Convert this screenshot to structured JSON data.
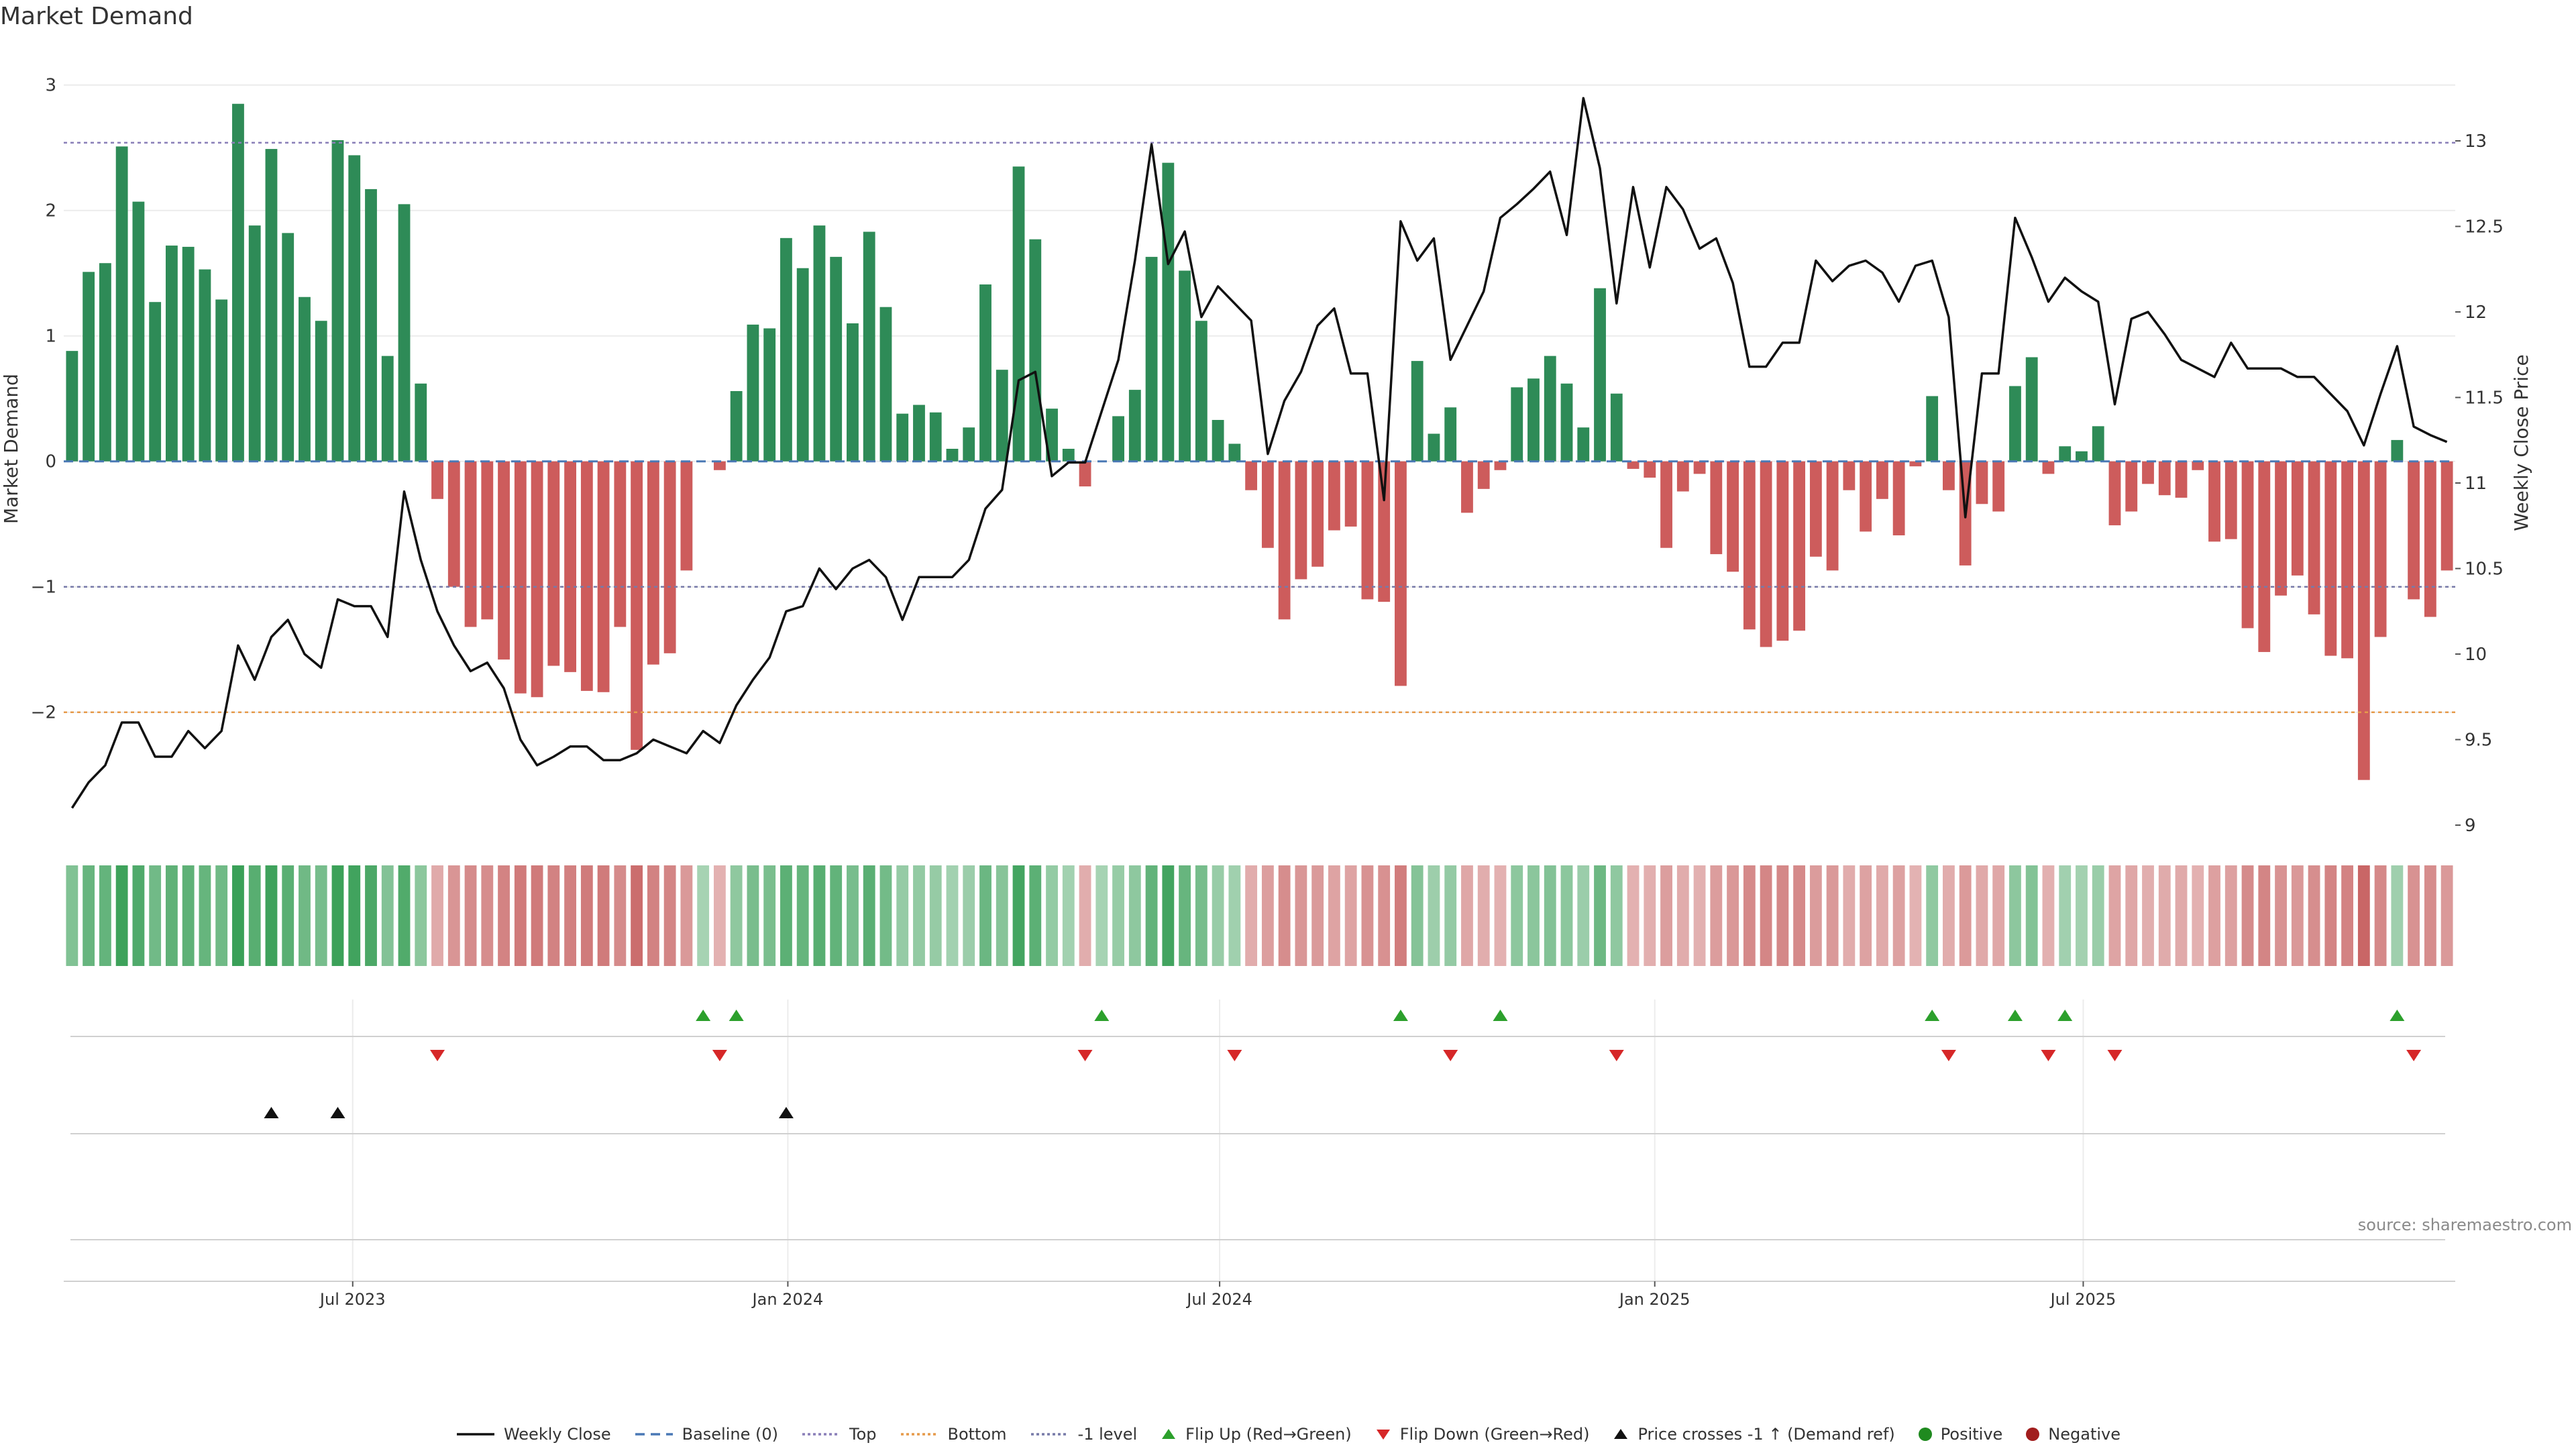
{
  "title": "Market Demand",
  "source": "source: sharemaestro.com",
  "chart_data": {
    "type": "bar",
    "title": "Market Demand",
    "weeks_start": "2023-03-06",
    "demand": [
      0.88,
      1.51,
      1.58,
      2.51,
      2.07,
      1.27,
      1.72,
      1.71,
      1.53,
      1.29,
      2.85,
      1.88,
      2.49,
      1.82,
      1.31,
      1.12,
      2.56,
      2.44,
      2.17,
      0.84,
      2.05,
      0.62,
      -0.3,
      -1.0,
      -1.32,
      -1.26,
      -1.58,
      -1.85,
      -1.88,
      -1.63,
      -1.68,
      -1.83,
      -1.84,
      -1.32,
      -2.3,
      -1.62,
      -1.53,
      -0.87,
      0.0,
      -0.07,
      0.56,
      1.09,
      1.06,
      1.78,
      1.54,
      1.88,
      1.63,
      1.1,
      1.83,
      1.23,
      0.38,
      0.45,
      0.39,
      0.1,
      0.27,
      1.41,
      0.73,
      2.35,
      1.77,
      0.42,
      0.1,
      -0.2,
      0.0,
      0.36,
      0.57,
      1.63,
      2.38,
      1.52,
      1.12,
      0.33,
      0.14,
      -0.23,
      -0.69,
      -1.26,
      -0.94,
      -0.84,
      -0.55,
      -0.52,
      -1.1,
      -1.12,
      -1.79,
      0.8,
      0.22,
      0.43,
      -0.41,
      -0.22,
      -0.07,
      0.59,
      0.66,
      0.84,
      0.62,
      0.27,
      1.38,
      0.54,
      -0.06,
      -0.13,
      -0.69,
      -0.24,
      -0.1,
      -0.74,
      -0.88,
      -1.34,
      -1.48,
      -1.43,
      -1.35,
      -0.76,
      -0.87,
      -0.23,
      -0.56,
      -0.3,
      -0.59,
      -0.04,
      0.52,
      -0.23,
      -0.83,
      -0.34,
      -0.4,
      0.6,
      0.83,
      -0.1,
      0.12,
      0.08,
      0.28,
      -0.51,
      -0.4,
      -0.18,
      -0.27,
      -0.29,
      -0.07,
      -0.64,
      -0.62,
      -1.33,
      -1.52,
      -1.07,
      -0.91,
      -1.22,
      -1.55,
      -1.57,
      -2.54,
      -1.4,
      0.17,
      -1.1,
      -1.24,
      -0.87
    ],
    "weekly_close": [
      9.1,
      9.25,
      9.35,
      9.6,
      9.6,
      9.4,
      9.4,
      9.55,
      9.45,
      9.55,
      10.05,
      9.85,
      10.1,
      10.2,
      10.0,
      9.92,
      10.32,
      10.28,
      10.28,
      10.1,
      10.95,
      10.55,
      10.25,
      10.05,
      9.9,
      9.95,
      9.8,
      9.5,
      9.35,
      9.4,
      9.46,
      9.46,
      9.38,
      9.38,
      9.42,
      9.5,
      9.46,
      9.42,
      9.55,
      9.48,
      9.7,
      9.85,
      9.98,
      10.25,
      10.28,
      10.5,
      10.38,
      10.5,
      10.55,
      10.45,
      10.2,
      10.45,
      10.45,
      10.45,
      10.55,
      10.85,
      10.96,
      11.6,
      11.65,
      11.04,
      11.12,
      11.12,
      11.42,
      11.72,
      12.3,
      12.98,
      12.28,
      12.47,
      11.97,
      12.15,
      12.05,
      11.95,
      11.17,
      11.48,
      11.65,
      11.92,
      12.02,
      11.64,
      11.64,
      10.9,
      12.53,
      12.3,
      12.43,
      11.72,
      11.92,
      12.12,
      12.55,
      12.63,
      12.72,
      12.82,
      12.45,
      13.25,
      12.84,
      12.05,
      12.73,
      12.26,
      12.73,
      12.6,
      12.37,
      12.43,
      12.17,
      11.68,
      11.68,
      11.82,
      11.82,
      12.3,
      12.18,
      12.27,
      12.3,
      12.23,
      12.06,
      12.27,
      12.3,
      11.97,
      10.8,
      11.64,
      11.64,
      12.55,
      12.32,
      12.06,
      12.2,
      12.12,
      12.06,
      11.46,
      11.96,
      12.0,
      11.87,
      11.72,
      11.67,
      11.62,
      11.82,
      11.67,
      11.67,
      11.67,
      11.62,
      11.62,
      11.52,
      11.42,
      11.22,
      11.52,
      11.8,
      11.33,
      11.28,
      11.24
    ],
    "y_left_label": "Market Demand",
    "y_right_label": "Weekly Close Price",
    "y_left_ticks": [
      "−2",
      "−1",
      "0",
      "1",
      "2",
      "3"
    ],
    "y_right_ticks": [
      "9",
      "9.5",
      "10",
      "10.5",
      "11",
      "11.5",
      "12",
      "12.5",
      "13"
    ],
    "ylim_left": [
      -2.9,
      3.1
    ],
    "ylim_right": [
      9.0,
      13.4
    ],
    "reference_lines": {
      "top": 2.54,
      "bottom": -2.0,
      "minus_one": -1.0,
      "baseline": 0
    },
    "x_ticks": [
      "Jul 2023",
      "Jan 2024",
      "Jul 2024",
      "Jan 2025",
      "Jul 2025"
    ],
    "x_tick_index": [
      16.9,
      43.1,
      69.1,
      95.3,
      121.1
    ],
    "flip_up_index": [
      38,
      40,
      62,
      80,
      86,
      112,
      117,
      120,
      140
    ],
    "flip_down_index": [
      22,
      39,
      61,
      70,
      83,
      93,
      113,
      119,
      123,
      141
    ],
    "price_cross_index": [
      12,
      16,
      43
    ],
    "colors": {
      "positive": "#2e8b57",
      "negative": "#cd5c5c",
      "price": "#111111",
      "top": "#8a7fb8",
      "bottom": "#e69a4a",
      "minus_one": "#777aa8",
      "baseline": "#4a78b5",
      "flip_up": "#2ca02c",
      "flip_down": "#d62728",
      "positive_dot": "#1f8a1f",
      "negative_dot": "#a11d1d"
    },
    "grid": true,
    "legend_position": "bottom-center"
  },
  "legend": [
    {
      "label": "Weekly Close",
      "kind": "line",
      "color": "#111111",
      "dash": ""
    },
    {
      "label": "Baseline (0)",
      "kind": "line",
      "color": "#4a78b5",
      "dash": "14,9"
    },
    {
      "label": "Top",
      "kind": "line",
      "color": "#8a7fb8",
      "dash": "4,4"
    },
    {
      "label": "Bottom",
      "kind": "line",
      "color": "#e69a4a",
      "dash": "4,4"
    },
    {
      "label": "-1 level",
      "kind": "line",
      "color": "#777aa8",
      "dash": "4,4"
    },
    {
      "label": "Flip Up (Red→Green)",
      "kind": "tri-up",
      "color": "#2ca02c"
    },
    {
      "label": "Flip Down (Green→Red)",
      "kind": "tri-down",
      "color": "#d62728"
    },
    {
      "label": "Price crosses -1 ↑ (Demand ref)",
      "kind": "tri-up",
      "color": "#111111"
    },
    {
      "label": "Positive",
      "kind": "dot",
      "color": "#1f8a1f"
    },
    {
      "label": "Negative",
      "kind": "dot",
      "color": "#a11d1d"
    }
  ]
}
